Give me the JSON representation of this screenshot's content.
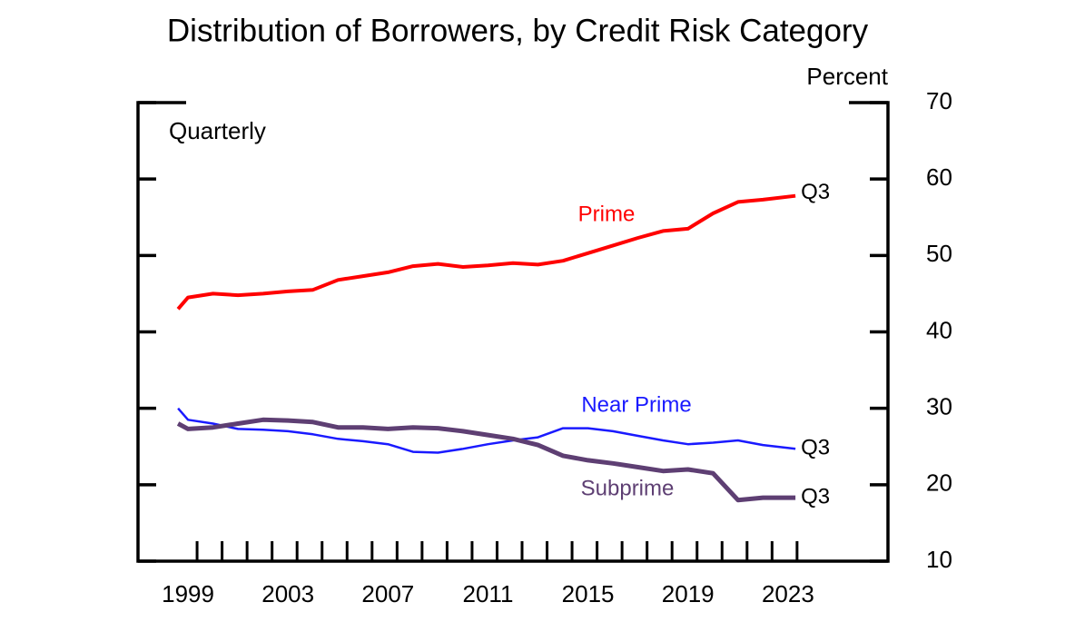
{
  "chart_data": {
    "type": "line",
    "title": "Distribution of Borrowers, by Credit Risk Category",
    "y_axis_label": "Percent",
    "annotation": "Quarterly",
    "x": [
      1998.6,
      1999,
      2000,
      2001,
      2002,
      2003,
      2004,
      2005,
      2006,
      2007,
      2008,
      2009,
      2010,
      2011,
      2012,
      2013,
      2014,
      2015,
      2016,
      2017,
      2018,
      2019,
      2020,
      2021,
      2022,
      2023.3
    ],
    "series": [
      {
        "name": "Prime",
        "color": "#ff0000",
        "width": 4,
        "end_label": "Q3",
        "values": [
          43,
          44.5,
          45,
          44.8,
          45,
          45.3,
          45.5,
          46.8,
          47.3,
          47.8,
          48.6,
          48.9,
          48.5,
          48.7,
          49,
          48.8,
          49.3,
          50.3,
          51.3,
          52.3,
          53.2,
          53.5,
          55.5,
          57,
          57.3,
          57.8
        ]
      },
      {
        "name": "Near Prime",
        "color": "#1a1aff",
        "width": 2.5,
        "end_label": "Q3",
        "values": [
          30,
          28.5,
          28,
          27.3,
          27.2,
          27,
          26.6,
          26,
          25.7,
          25.3,
          24.3,
          24.2,
          24.7,
          25.3,
          25.8,
          26.2,
          27.4,
          27.4,
          27,
          26.4,
          25.8,
          25.3,
          25.5,
          25.8,
          25.2,
          24.7
        ]
      },
      {
        "name": "Subprime",
        "color": "#5e3f73",
        "width": 5,
        "end_label": "Q3",
        "values": [
          28,
          27.3,
          27.5,
          28,
          28.5,
          28.4,
          28.2,
          27.5,
          27.5,
          27.3,
          27.5,
          27.4,
          27,
          26.5,
          26,
          25.2,
          23.8,
          23.2,
          22.8,
          22.3,
          21.8,
          22,
          21.5,
          18,
          18.3,
          18.3
        ]
      }
    ],
    "xlim": [
      1997,
      2027
    ],
    "xticks": [
      1999,
      2003,
      2007,
      2011,
      2015,
      2019,
      2023
    ],
    "x_minor_ticks": [
      1999,
      2000,
      2001,
      2002,
      2003,
      2004,
      2005,
      2006,
      2007,
      2008,
      2009,
      2010,
      2011,
      2012,
      2013,
      2014,
      2015,
      2016,
      2017,
      2018,
      2019,
      2020,
      2021,
      2022,
      2023
    ],
    "ylim": [
      10,
      70
    ],
    "yticks": [
      10,
      20,
      30,
      40,
      50,
      60,
      70
    ],
    "y_axis_side": "right",
    "grid": false
  }
}
